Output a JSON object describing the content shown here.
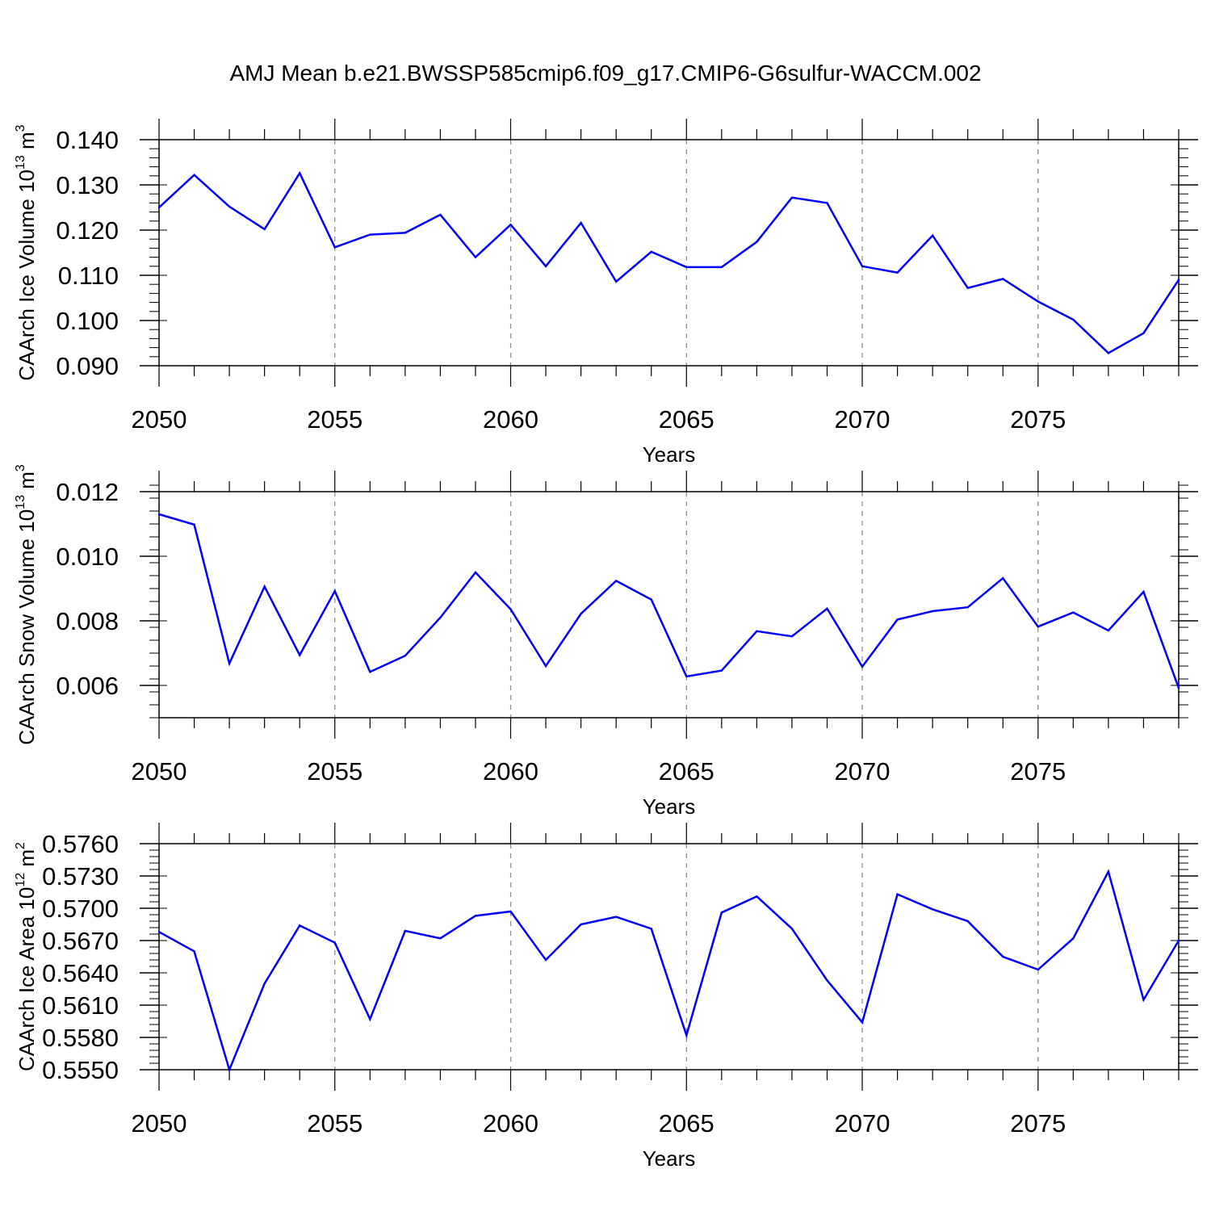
{
  "figure": {
    "title": "AMJ Mean b.e21.BWSSP585cmip6.f09_g17.CMIP6-G6sulfur-WACCM.002",
    "line_color": "#0000ff"
  },
  "chart_data": [
    {
      "type": "line",
      "title": "",
      "xlabel": "Years",
      "ylabel": "CAArch Ice Volume 10",
      "ylabel_exponent": "13",
      "ylabel_unit": " m",
      "ylabel_unit_exponent": "3",
      "xlim": [
        2050,
        2079
      ],
      "ylim": [
        0.09,
        0.14
      ],
      "x_ticks": [
        "2050",
        "2055",
        "2060",
        "2065",
        "2070",
        "2075"
      ],
      "y_ticks": [
        "0.090",
        "0.100",
        "0.110",
        "0.120",
        "0.130",
        "0.140"
      ],
      "y_minor_step": 0.002,
      "x": [
        2050,
        2051,
        2052,
        2053,
        2054,
        2055,
        2056,
        2057,
        2058,
        2059,
        2060,
        2061,
        2062,
        2063,
        2064,
        2065,
        2066,
        2067,
        2068,
        2069,
        2070,
        2071,
        2072,
        2073,
        2074,
        2075,
        2076,
        2077,
        2078,
        2079
      ],
      "series": [
        {
          "name": "CAArch Ice Volume",
          "values": [
            0.125,
            0.1322,
            0.1252,
            0.1202,
            0.1326,
            0.1162,
            0.119,
            0.1194,
            0.1234,
            0.114,
            0.1212,
            0.112,
            0.1216,
            0.1086,
            0.1152,
            0.1118,
            0.1118,
            0.1174,
            0.1272,
            0.126,
            0.112,
            0.1106,
            0.1188,
            0.1072,
            0.1092,
            0.1042,
            0.1002,
            0.0928,
            0.0972,
            0.109
          ]
        }
      ]
    },
    {
      "type": "line",
      "title": "",
      "xlabel": "Years",
      "ylabel": "CAArch Snow Volume 10",
      "ylabel_exponent": "13",
      "ylabel_unit": " m",
      "ylabel_unit_exponent": "3",
      "xlim": [
        2050,
        2079
      ],
      "ylim": [
        0.005,
        0.012
      ],
      "x_ticks": [
        "2050",
        "2055",
        "2060",
        "2065",
        "2070",
        "2075"
      ],
      "y_ticks": [
        "0.006",
        "0.008",
        "0.010",
        "0.012"
      ],
      "y_tick_values": [
        0.006,
        0.008,
        0.01,
        0.012
      ],
      "y_minor_step": 0.0004,
      "x": [
        2050,
        2051,
        2052,
        2053,
        2054,
        2055,
        2056,
        2057,
        2058,
        2059,
        2060,
        2061,
        2062,
        2063,
        2064,
        2065,
        2066,
        2067,
        2068,
        2069,
        2070,
        2071,
        2072,
        2073,
        2074,
        2075,
        2076,
        2077,
        2078,
        2079
      ],
      "series": [
        {
          "name": "CAArch Snow Volume",
          "values": [
            0.0113,
            0.01098,
            0.00668,
            0.00906,
            0.00694,
            0.00892,
            0.00642,
            0.00692,
            0.0081,
            0.0095,
            0.00836,
            0.0066,
            0.00822,
            0.00924,
            0.00866,
            0.00628,
            0.00646,
            0.00768,
            0.00752,
            0.00838,
            0.00658,
            0.00804,
            0.0083,
            0.00842,
            0.00932,
            0.00782,
            0.00826,
            0.0077,
            0.0089,
            0.00592
          ]
        }
      ]
    },
    {
      "type": "line",
      "title": "",
      "xlabel": "Years",
      "ylabel": "CAArch Ice Area 10",
      "ylabel_exponent": "12",
      "ylabel_unit": " m",
      "ylabel_unit_exponent": "2",
      "xlim": [
        2050,
        2079
      ],
      "ylim": [
        0.555,
        0.576
      ],
      "x_ticks": [
        "2050",
        "2055",
        "2060",
        "2065",
        "2070",
        "2075"
      ],
      "y_ticks": [
        "0.5550",
        "0.5580",
        "0.5610",
        "0.5640",
        "0.5670",
        "0.5700",
        "0.5730",
        "0.5760"
      ],
      "y_minor_step": 0.0006,
      "x": [
        2050,
        2051,
        2052,
        2053,
        2054,
        2055,
        2056,
        2057,
        2058,
        2059,
        2060,
        2061,
        2062,
        2063,
        2064,
        2065,
        2066,
        2067,
        2068,
        2069,
        2070,
        2071,
        2072,
        2073,
        2074,
        2075,
        2076,
        2077,
        2078,
        2079
      ],
      "series": [
        {
          "name": "CAArch Ice Area",
          "values": [
            0.5678,
            0.566,
            0.555,
            0.563,
            0.5684,
            0.5668,
            0.5597,
            0.5679,
            0.5672,
            0.5693,
            0.5697,
            0.5652,
            0.5685,
            0.5692,
            0.5681,
            0.5582,
            0.5696,
            0.5711,
            0.5681,
            0.5633,
            0.5594,
            0.5713,
            0.5699,
            0.5688,
            0.5655,
            0.5643,
            0.5672,
            0.5734,
            0.5615,
            0.567
          ]
        }
      ]
    }
  ]
}
